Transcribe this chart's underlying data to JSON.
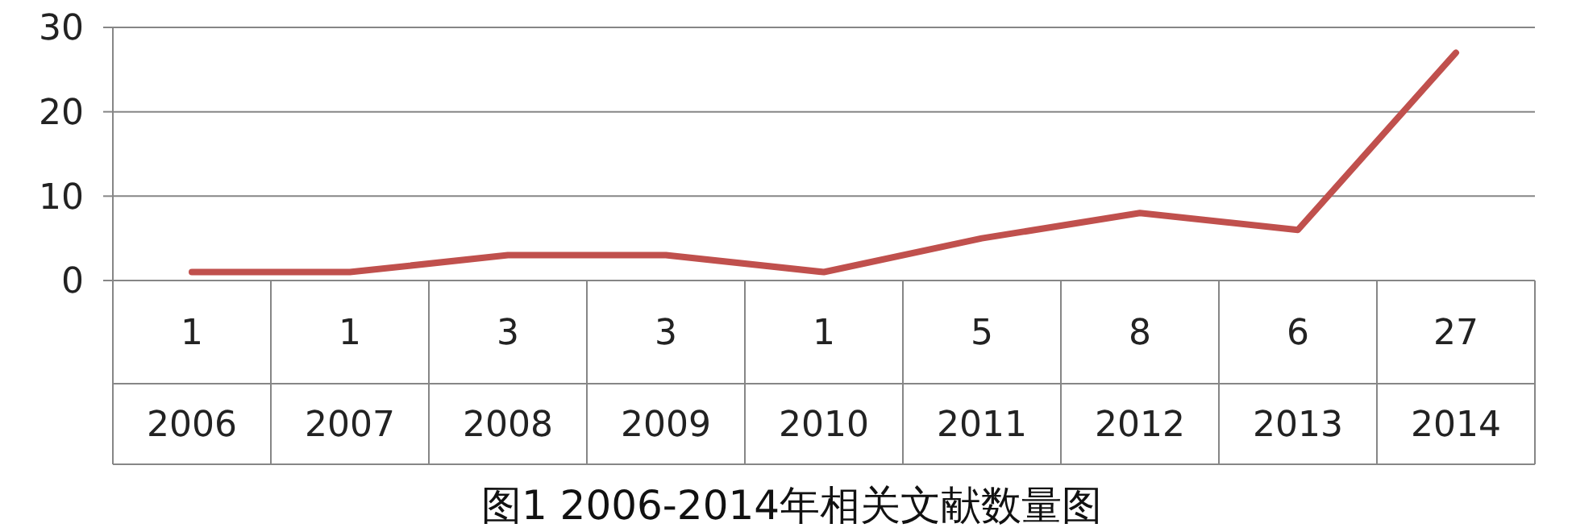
{
  "chart_data": {
    "type": "line",
    "title": "图1 2006-2014年相关文献数量图",
    "categories": [
      "2006",
      "2007",
      "2008",
      "2009",
      "2010",
      "2011",
      "2012",
      "2013",
      "2014"
    ],
    "series": [
      {
        "color": "#c0504d",
        "values": [
          1,
          1,
          3,
          3,
          1,
          5,
          8,
          6,
          27
        ]
      }
    ],
    "ylim": [
      0,
      30
    ],
    "yticks": [
      0,
      10,
      20,
      30
    ],
    "grid": "y",
    "data_labels": true,
    "marker": "none",
    "line_style": "solid"
  }
}
